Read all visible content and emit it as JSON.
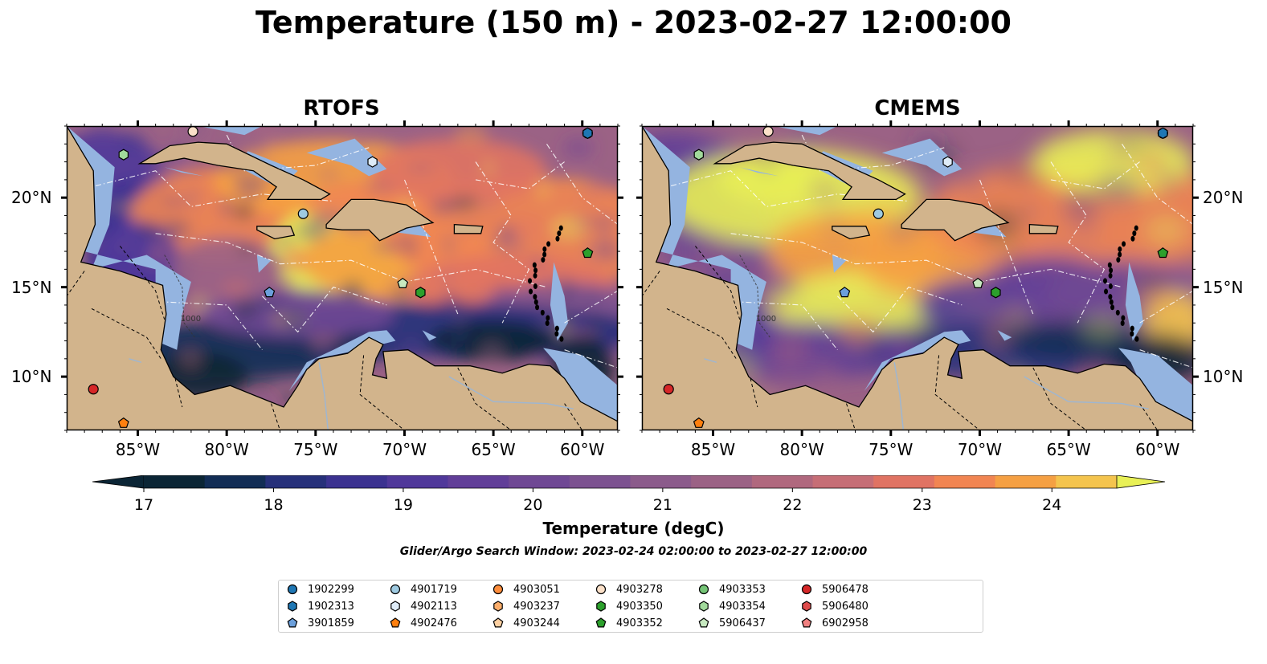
{
  "title": "Temperature (150 m) - 2023-02-27 12:00:00",
  "panels": [
    {
      "title": "RTOFS",
      "lat_labels_side": "left"
    },
    {
      "title": "CMEMS",
      "lat_labels_side": "right"
    }
  ],
  "map_extent": {
    "lon": [
      -89,
      -58
    ],
    "lat": [
      7,
      24
    ]
  },
  "lon_ticks": [
    "85°W",
    "80°W",
    "75°W",
    "70°W",
    "65°W",
    "60°W"
  ],
  "lon_tick_values": [
    -85,
    -80,
    -75,
    -70,
    -65,
    -60
  ],
  "lat_ticks": [
    "20°N",
    "15°N",
    "10°N"
  ],
  "lat_tick_values": [
    20,
    15,
    10
  ],
  "contour_labels": [
    "1000",
    "1000"
  ],
  "colors": {
    "land": "#d2b48c",
    "shelf": "#94b4e0",
    "coldest": "#06202e",
    "warmest": "#e8f056"
  },
  "colorbar": {
    "label": "Temperature (degC)",
    "ticks": [
      "17",
      "18",
      "19",
      "20",
      "21",
      "22",
      "23",
      "24"
    ],
    "min": 17,
    "max": 24.5,
    "step": 0.5,
    "extend": "both",
    "colors": [
      "#0b2535",
      "#122d55",
      "#26307a",
      "#3b3290",
      "#50389a",
      "#613e98",
      "#6f4894",
      "#7c5290",
      "#8b5b8b",
      "#9b6285",
      "#b0687e",
      "#c66e76",
      "#e07363",
      "#f18552",
      "#f5a043",
      "#f4c44e",
      "#e8f056"
    ]
  },
  "search_window": "Glider/Argo Search Window: 2023-02-24 02:00:00 to 2023-02-27 12:00:00",
  "floats": [
    {
      "id": "1902299",
      "marker": "circle",
      "color": "#1f77b4",
      "lon": -59.7,
      "lat": 23.6
    },
    {
      "id": "1902313",
      "marker": "hexagon",
      "color": "#1f77b4",
      "lon": -59.7,
      "lat": 23.6
    },
    {
      "id": "3901859",
      "marker": "pentagon",
      "color": "#6ca0dc",
      "lon": -77.6,
      "lat": 14.7
    },
    {
      "id": "4901719",
      "marker": "circle",
      "color": "#9ecae1",
      "lon": -75.7,
      "lat": 19.1
    },
    {
      "id": "4902113",
      "marker": "hexagon",
      "color": "#deebf7",
      "lon": -71.8,
      "lat": 22.0
    },
    {
      "id": "4902476",
      "marker": "pentagon",
      "color": "#ff7f0e",
      "lon": -85.8,
      "lat": 7.4
    },
    {
      "id": "4903051",
      "marker": "circle",
      "color": "#fd8d3c",
      "lon": null,
      "lat": null
    },
    {
      "id": "4903237",
      "marker": "hexagon",
      "color": "#fdae6b",
      "lon": null,
      "lat": null
    },
    {
      "id": "4903244",
      "marker": "pentagon",
      "color": "#fdd0a2",
      "lon": null,
      "lat": null
    },
    {
      "id": "4903278",
      "marker": "circle",
      "color": "#fbe0c8",
      "lon": -81.9,
      "lat": 23.7
    },
    {
      "id": "4903350",
      "marker": "hexagon",
      "color": "#2ca02c",
      "lon": -69.1,
      "lat": 14.7
    },
    {
      "id": "4903352",
      "marker": "pentagon",
      "color": "#2ca02c",
      "lon": -59.7,
      "lat": 16.9
    },
    {
      "id": "4903353",
      "marker": "circle",
      "color": "#74c476",
      "lon": null,
      "lat": null
    },
    {
      "id": "4903354",
      "marker": "hexagon",
      "color": "#a1d99b",
      "lon": -85.8,
      "lat": 22.4
    },
    {
      "id": "5906437",
      "marker": "pentagon",
      "color": "#c7e9c0",
      "lon": -70.1,
      "lat": 15.2
    },
    {
      "id": "5906478",
      "marker": "circle",
      "color": "#d62728",
      "lon": -87.5,
      "lat": 9.3
    },
    {
      "id": "5906480",
      "marker": "hexagon",
      "color": "#de4b4b",
      "lon": null,
      "lat": null
    },
    {
      "id": "6902958",
      "marker": "pentagon",
      "color": "#f08080",
      "lon": null,
      "lat": null
    }
  ]
}
